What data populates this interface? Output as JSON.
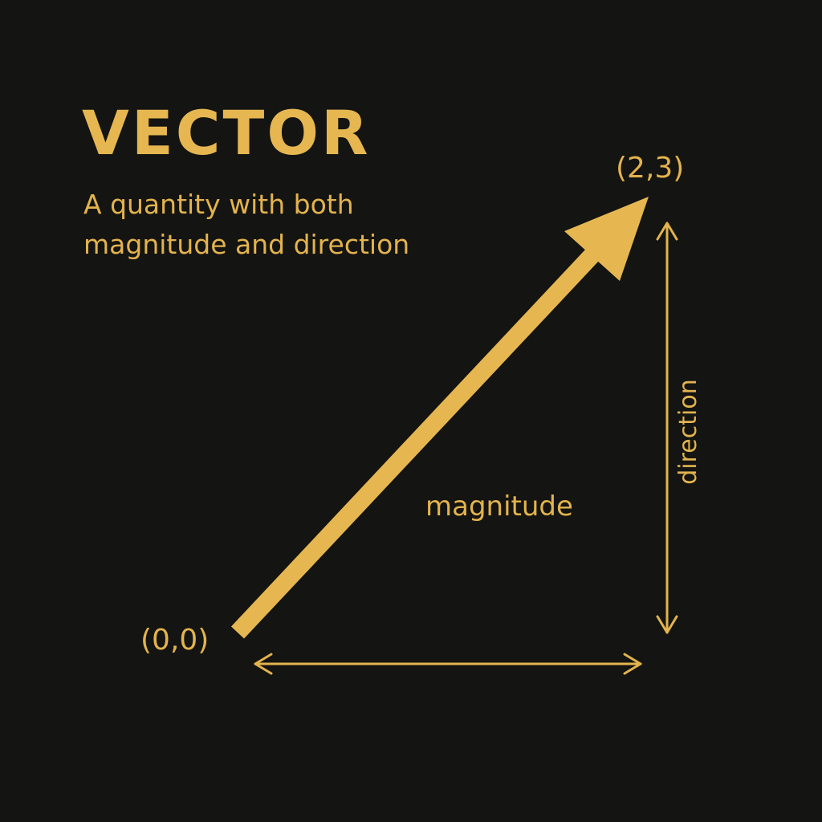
{
  "diagram": {
    "title": "VECTOR",
    "subtitle_line1": "A quantity with both",
    "subtitle_line2": "magnitude and direction",
    "origin_label": "(0,0)",
    "end_label": "(2,3)",
    "magnitude_label": "magnitude",
    "direction_label": "direction"
  },
  "colors": {
    "background": "#141412",
    "accent": "#e6b750"
  }
}
